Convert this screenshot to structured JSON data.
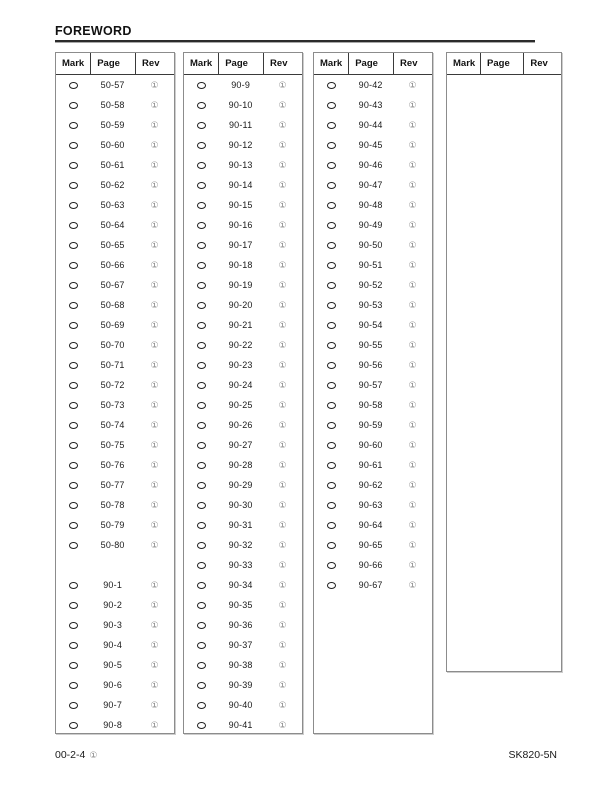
{
  "heading": "FOREWORD",
  "table_headers": [
    "Mark",
    "Page",
    "Rev"
  ],
  "symbols": {
    "mark": "❍",
    "rev": "①"
  },
  "tables": [
    {
      "rows": [
        "50-57",
        "50-58",
        "50-59",
        "50-60",
        "50-61",
        "50-62",
        "50-63",
        "50-64",
        "50-65",
        "50-66",
        "50-67",
        "50-68",
        "50-69",
        "50-70",
        "50-71",
        "50-72",
        "50-73",
        "50-74",
        "50-75",
        "50-76",
        "50-77",
        "50-78",
        "50-79",
        "50-80",
        "",
        "90-1",
        "90-2",
        "90-3",
        "90-4",
        "90-5",
        "90-6",
        "90-7",
        "90-8"
      ]
    },
    {
      "rows": [
        "90-9",
        "90-10",
        "90-11",
        "90-12",
        "90-13",
        "90-14",
        "90-15",
        "90-16",
        "90-17",
        "90-18",
        "90-19",
        "90-20",
        "90-21",
        "90-22",
        "90-23",
        "90-24",
        "90-25",
        "90-26",
        "90-27",
        "90-28",
        "90-29",
        "90-30",
        "90-31",
        "90-32",
        "90-33",
        "90-34",
        "90-35",
        "90-36",
        "90-37",
        "90-38",
        "90-39",
        "90-40",
        "90-41"
      ]
    },
    {
      "rows": [
        "90-42",
        "90-43",
        "90-44",
        "90-45",
        "90-46",
        "90-47",
        "90-48",
        "90-49",
        "90-50",
        "90-51",
        "90-52",
        "90-53",
        "90-54",
        "90-55",
        "90-56",
        "90-57",
        "90-58",
        "90-59",
        "90-60",
        "90-61",
        "90-62",
        "90-63",
        "90-64",
        "90-65",
        "90-66",
        "90-67"
      ]
    },
    {
      "rows": []
    }
  ],
  "footer": {
    "page_number": "00-2-4",
    "page_rev": "①",
    "model": "SK820-5N"
  }
}
